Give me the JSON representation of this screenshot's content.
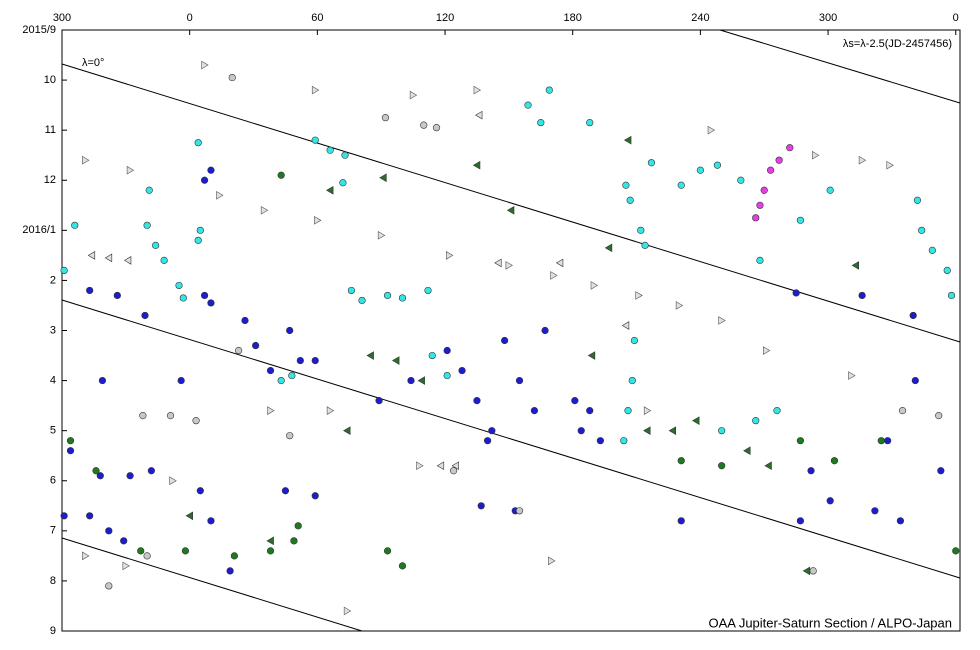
{
  "chart_data": {
    "type": "scatter",
    "annotations": [
      "λ=0°",
      "λs=λ-2.5(JD-2457456)",
      "OAA Jupiter-Saturn Section / ALPO-Japan"
    ],
    "xlim": [
      300,
      722
    ],
    "xticks": [
      300,
      {
        "value": 360,
        "label": "0"
      },
      {
        "value": 420,
        "label": "60"
      },
      {
        "value": 480,
        "label": "120"
      },
      {
        "value": 540,
        "label": "180"
      },
      {
        "value": 600,
        "label": "240"
      },
      {
        "value": 660,
        "label": "300"
      },
      {
        "value": 720,
        "label": "0"
      }
    ],
    "ylim": [
      0,
      12
    ],
    "y_reversed": true,
    "yticks": [
      {
        "value": 0,
        "label": "2015/9"
      },
      {
        "value": 1,
        "label": "10"
      },
      {
        "value": 2,
        "label": "11"
      },
      {
        "value": 3,
        "label": "12"
      },
      {
        "value": 4,
        "label": "2016/1"
      },
      {
        "value": 5,
        "label": "2"
      },
      {
        "value": 6,
        "label": "3"
      },
      {
        "value": 7,
        "label": "4"
      },
      {
        "value": 8,
        "label": "5"
      },
      {
        "value": 9,
        "label": "6"
      },
      {
        "value": 10,
        "label": "7"
      },
      {
        "value": 11,
        "label": "8"
      },
      {
        "value": 12,
        "label": "9"
      }
    ],
    "series": [
      {
        "marker": "circle",
        "color": "#33e6e6",
        "x": [
          341,
          340,
          344,
          348,
          355,
          357,
          364,
          365,
          364,
          419,
          426,
          433,
          432,
          519,
          525,
          529,
          548,
          565,
          567,
          572,
          574,
          577,
          591,
          600,
          608,
          619,
          628,
          647,
          661,
          702,
          704,
          709,
          716,
          718,
          436,
          441,
          453,
          460,
          472,
          474,
          481,
          569,
          568,
          566,
          564,
          610,
          626,
          636,
          403,
          408,
          306,
          301
        ],
        "values": [
          3.2,
          3.9,
          4.3,
          4.6,
          5.1,
          5.35,
          4.2,
          4.0,
          2.25,
          2.2,
          2.4,
          2.5,
          3.05,
          1.5,
          1.85,
          1.2,
          1.85,
          3.1,
          3.4,
          4.0,
          4.3,
          2.65,
          3.1,
          2.8,
          2.7,
          3.0,
          4.6,
          3.8,
          3.2,
          3.4,
          4.0,
          4.4,
          4.8,
          5.3,
          5.2,
          5.4,
          5.3,
          5.35,
          5.2,
          6.5,
          6.9,
          6.2,
          7.0,
          7.6,
          8.2,
          8.0,
          7.8,
          7.6,
          7.0,
          6.9,
          3.9,
          4.8
        ]
      },
      {
        "marker": "circle",
        "color": "#1c1cd0",
        "x": [
          386,
          391,
          398,
          407,
          412,
          419,
          481,
          488,
          495,
          500,
          502,
          508,
          515,
          527,
          522,
          541,
          544,
          548,
          553,
          464,
          449,
          370,
          367,
          313,
          326,
          339,
          367,
          370,
          304,
          318,
          332,
          342,
          301,
          313,
          322,
          329,
          365,
          370,
          379,
          405,
          419,
          497,
          513,
          591,
          647,
          652,
          661,
          682,
          694,
          713,
          701,
          676,
          645,
          700,
          319,
          356,
          688
        ],
        "values": [
          5.8,
          6.3,
          6.8,
          6.0,
          6.6,
          6.6,
          6.4,
          6.8,
          7.4,
          8.2,
          8.0,
          6.2,
          7.0,
          6.0,
          7.6,
          7.4,
          8.0,
          7.6,
          8.2,
          7.0,
          7.4,
          2.8,
          3.0,
          5.2,
          5.3,
          5.7,
          5.3,
          5.45,
          8.4,
          8.9,
          8.9,
          8.8,
          9.7,
          9.7,
          10.0,
          10.2,
          9.2,
          9.8,
          10.8,
          9.2,
          9.3,
          9.5,
          9.6,
          9.8,
          9.8,
          8.8,
          9.4,
          9.6,
          9.8,
          8.8,
          7.0,
          5.3,
          5.25,
          5.7,
          7.0,
          7.0,
          8.2
        ]
      },
      {
        "marker": "circle",
        "color": "#1f7a1f",
        "x": [
          403,
          304,
          316,
          337,
          358,
          381,
          398,
          409,
          453,
          460,
          610,
          647,
          663,
          685,
          720,
          591,
          411
        ],
        "values": [
          2.9,
          8.2,
          8.8,
          10.4,
          10.4,
          10.5,
          10.4,
          10.2,
          10.4,
          10.7,
          8.7,
          8.2,
          8.6,
          8.2,
          10.4,
          8.6,
          9.9
        ]
      },
      {
        "marker": "circle",
        "color": "#c8c8c8",
        "x": [
          380,
          452,
          470,
          476,
          383,
          338,
          351,
          363,
          407,
          484,
          515,
          653,
          695,
          712,
          322,
          340
        ],
        "values": [
          0.95,
          1.75,
          1.9,
          1.95,
          6.4,
          7.7,
          7.7,
          7.8,
          8.1,
          8.8,
          9.6,
          10.8,
          7.6,
          7.7,
          11.1,
          10.5
        ]
      },
      {
        "marker": "circle",
        "color": "#e83ce8",
        "x": [
          642,
          637,
          633,
          630,
          628,
          626
        ],
        "values": [
          2.35,
          2.6,
          2.8,
          3.2,
          3.5,
          3.75
        ]
      },
      {
        "marker": "left",
        "color": "#2a6e2a",
        "x": [
          426,
          451,
          495,
          511,
          557,
          566,
          445,
          457,
          469,
          575,
          587,
          598,
          622,
          632,
          673,
          434,
          360,
          398,
          650,
          549
        ],
        "values": [
          3.2,
          2.95,
          2.7,
          3.6,
          4.35,
          2.2,
          6.5,
          6.6,
          7.0,
          8.0,
          8.0,
          7.8,
          8.4,
          8.7,
          4.7,
          8.0,
          9.7,
          10.2,
          10.8,
          6.5
        ]
      },
      {
        "marker": "right",
        "color": "#e0e0e0",
        "x": [
          367,
          419,
          465,
          495,
          311,
          332,
          374,
          395,
          420,
          450,
          482,
          510,
          531,
          550,
          571,
          590,
          610,
          631,
          671,
          575,
          398,
          468,
          352,
          311,
          330,
          605,
          654,
          676,
          689,
          426,
          530,
          434
        ],
        "values": [
          0.7,
          1.2,
          1.3,
          1.2,
          2.6,
          2.8,
          3.3,
          3.6,
          3.8,
          4.1,
          4.5,
          4.7,
          4.9,
          5.1,
          5.3,
          5.5,
          5.8,
          6.4,
          6.9,
          7.6,
          7.6,
          8.7,
          9.0,
          10.5,
          10.7,
          2.0,
          2.5,
          2.6,
          2.7,
          7.6,
          10.6,
          11.6
        ]
      },
      {
        "marker": "left",
        "color": "#e0e0e0",
        "x": [
          314,
          322,
          331,
          496,
          505,
          534,
          565,
          478,
          485
        ],
        "values": [
          4.5,
          4.55,
          4.6,
          1.7,
          4.65,
          4.65,
          5.9,
          8.7,
          8.7
        ]
      }
    ]
  }
}
